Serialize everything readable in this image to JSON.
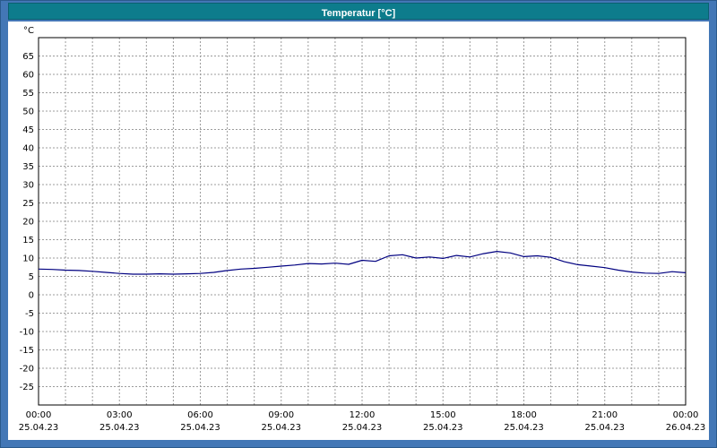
{
  "window": {
    "title": "Temperatur [°C]",
    "frame_color": "#4377B6",
    "titlebar_color": "#0D7C8C",
    "title_text_color": "#FFFFFF"
  },
  "chart_data": {
    "type": "line",
    "title": "Temperatur [°C]",
    "unit_label": "°C",
    "grid": true,
    "legend_position": "none",
    "ylim": [
      -30,
      70
    ],
    "y_ticks": [
      65,
      60,
      55,
      50,
      45,
      40,
      35,
      30,
      25,
      20,
      15,
      10,
      5,
      0,
      -5,
      -10,
      -15,
      -20,
      -25
    ],
    "x_range_hours": [
      0,
      24
    ],
    "x_grid_step_hours": 1,
    "x_ticks": [
      {
        "hour": 0,
        "time": "00:00",
        "date": "25.04.23"
      },
      {
        "hour": 3,
        "time": "03:00",
        "date": "25.04.23"
      },
      {
        "hour": 6,
        "time": "06:00",
        "date": "25.04.23"
      },
      {
        "hour": 9,
        "time": "09:00",
        "date": "25.04.23"
      },
      {
        "hour": 12,
        "time": "12:00",
        "date": "25.04.23"
      },
      {
        "hour": 15,
        "time": "15:00",
        "date": "25.04.23"
      },
      {
        "hour": 18,
        "time": "18:00",
        "date": "25.04.23"
      },
      {
        "hour": 21,
        "time": "21:00",
        "date": "25.04.23"
      },
      {
        "hour": 24,
        "time": "00:00",
        "date": "26.04.23"
      }
    ],
    "colors": {
      "line": "#000080",
      "grid": "#9C9C9C",
      "plot_border": "#000000",
      "plot_bg": "#FFFFFF"
    },
    "series": [
      {
        "name": "Temperatur",
        "x_hours": [
          0,
          0.5,
          1,
          1.5,
          2,
          2.5,
          3,
          3.5,
          4,
          4.5,
          5,
          5.5,
          6,
          6.5,
          7,
          7.5,
          8,
          8.5,
          9,
          9.5,
          10,
          10.5,
          11,
          11.5,
          12,
          12.5,
          13,
          13.5,
          14,
          14.5,
          15,
          15.5,
          16,
          16.5,
          17,
          17.5,
          18,
          18.5,
          19,
          19.5,
          20,
          20.5,
          21,
          21.5,
          22,
          22.5,
          23,
          23.5,
          24
        ],
        "values": [
          7.0,
          6.9,
          6.7,
          6.6,
          6.4,
          6.1,
          5.8,
          5.6,
          5.6,
          5.7,
          5.6,
          5.7,
          5.8,
          6.1,
          6.6,
          7.0,
          7.2,
          7.5,
          7.8,
          8.1,
          8.5,
          8.4,
          8.6,
          8.3,
          9.4,
          9.1,
          10.6,
          10.9,
          10.0,
          10.3,
          9.9,
          10.7,
          10.3,
          11.2,
          11.8,
          11.4,
          10.4,
          10.6,
          10.2,
          9.0,
          8.2,
          7.8,
          7.4,
          6.7,
          6.2,
          5.9,
          5.8,
          6.3,
          6.0
        ]
      }
    ]
  }
}
